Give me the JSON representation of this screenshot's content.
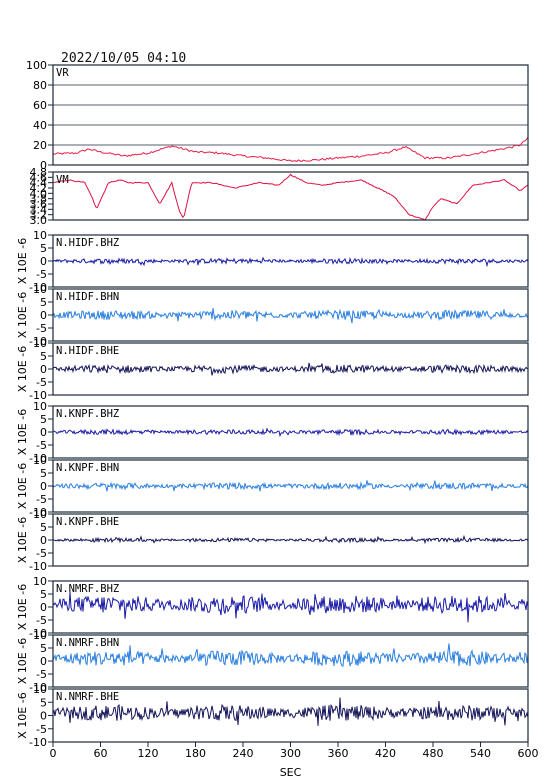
{
  "header": {
    "datetime": "2022/10/05 04:10"
  },
  "colors": {
    "vr_line": "#e8204a",
    "vm_line": "#e01040",
    "bhz": "#1a1aa8",
    "bhn": "#2a7fe0",
    "bhe": "#14145a",
    "frame": "#1a2a3a"
  },
  "chart_data": [
    {
      "type": "line",
      "panel_label": "VR",
      "x_range": [
        0,
        600
      ],
      "ylim": [
        0,
        100
      ],
      "y_ticks": [
        "100",
        "80",
        "60",
        "40",
        "20",
        "0"
      ],
      "grid": true,
      "x": [
        0,
        30,
        45,
        60,
        90,
        120,
        150,
        165,
        180,
        210,
        240,
        270,
        300,
        330,
        360,
        390,
        420,
        445,
        470,
        500,
        530,
        560,
        580,
        590,
        600
      ],
      "values": [
        11,
        12,
        16,
        13,
        9,
        12,
        19,
        16,
        13,
        12,
        9,
        7,
        4,
        5,
        7,
        9,
        12,
        18,
        7,
        7,
        11,
        15,
        18,
        20,
        27
      ]
    },
    {
      "type": "line",
      "panel_label": "VM",
      "x_range": [
        0,
        600
      ],
      "ylim": [
        3.0,
        4.8
      ],
      "y_ticks": [
        "4.8",
        "4.6",
        "4.4",
        "4.2",
        "4.0",
        "3.8",
        "3.6",
        "3.4",
        "3.2",
        "3.0"
      ],
      "grid": false,
      "x": [
        0,
        20,
        40,
        50,
        55,
        70,
        85,
        95,
        120,
        135,
        150,
        160,
        165,
        175,
        200,
        230,
        260,
        285,
        300,
        320,
        340,
        360,
        390,
        410,
        430,
        450,
        470,
        480,
        490,
        510,
        530,
        550,
        570,
        590,
        600
      ],
      "values": [
        4.4,
        4.5,
        4.4,
        3.8,
        3.4,
        4.4,
        4.5,
        4.4,
        4.4,
        3.6,
        4.4,
        3.3,
        3.05,
        4.4,
        4.4,
        4.2,
        4.4,
        4.3,
        4.7,
        4.4,
        4.3,
        4.4,
        4.5,
        4.2,
        3.9,
        3.2,
        3.0,
        3.5,
        3.8,
        3.6,
        4.3,
        4.4,
        4.5,
        4.1,
        4.3
      ]
    },
    {
      "type": "line",
      "panel_label": "N.HIDF.BHZ",
      "x_range": [
        0,
        600
      ],
      "ylim": [
        -10,
        10
      ],
      "y_ticks": [
        "10",
        "5",
        "0",
        "-5",
        "-10"
      ],
      "series": [
        {
          "name": "N.HIDF.BHZ",
          "amplitude": 0.8,
          "offset": 0
        }
      ]
    },
    {
      "type": "line",
      "panel_label": "N.HIDF.BHN",
      "x_range": [
        0,
        600
      ],
      "ylim": [
        -10,
        10
      ],
      "y_ticks": [
        "10",
        "5",
        "0",
        "-5",
        "-10"
      ],
      "series": [
        {
          "name": "N.HIDF.BHN",
          "amplitude": 1.5,
          "offset": 0
        }
      ]
    },
    {
      "type": "line",
      "panel_label": "N.HIDF.BHE",
      "x_range": [
        0,
        600
      ],
      "ylim": [
        -10,
        10
      ],
      "y_ticks": [
        "10",
        "5",
        "0",
        "-5",
        "-10"
      ],
      "series": [
        {
          "name": "N.HIDF.BHE",
          "amplitude": 1.3,
          "offset": 0
        }
      ]
    },
    {
      "type": "line",
      "panel_label": "N.KNPF.BHZ",
      "x_range": [
        0,
        600
      ],
      "ylim": [
        -10,
        10
      ],
      "y_ticks": [
        "10",
        "5",
        "0",
        "-5",
        "-10"
      ],
      "series": [
        {
          "name": "N.KNPF.BHZ",
          "amplitude": 0.8,
          "offset": 0
        }
      ]
    },
    {
      "type": "line",
      "panel_label": "N.KNPF.BHN",
      "x_range": [
        0,
        600
      ],
      "ylim": [
        -10,
        10
      ],
      "y_ticks": [
        "10",
        "5",
        "0",
        "-5",
        "-10"
      ],
      "series": [
        {
          "name": "N.KNPF.BHN",
          "amplitude": 1.0,
          "offset": 0
        }
      ]
    },
    {
      "type": "line",
      "panel_label": "N.KNPF.BHE",
      "x_range": [
        0,
        600
      ],
      "ylim": [
        -10,
        10
      ],
      "y_ticks": [
        "10",
        "5",
        "0",
        "-5",
        "-10"
      ],
      "series": [
        {
          "name": "N.KNPF.BHE",
          "amplitude": 0.6,
          "offset": 0
        }
      ]
    },
    {
      "type": "line",
      "panel_label": "N.NMRF.BHZ",
      "x_range": [
        0,
        600
      ],
      "ylim": [
        -10,
        10
      ],
      "y_ticks": [
        "10",
        "5",
        "0",
        "-5",
        "-10"
      ],
      "series": [
        {
          "name": "N.NMRF.BHZ",
          "amplitude": 3.0,
          "offset": 1
        }
      ]
    },
    {
      "type": "line",
      "panel_label": "N.NMRF.BHN",
      "x_range": [
        0,
        600
      ],
      "ylim": [
        -10,
        10
      ],
      "y_ticks": [
        "10",
        "5",
        "0",
        "-5",
        "-10"
      ],
      "series": [
        {
          "name": "N.NMRF.BHN",
          "amplitude": 2.5,
          "offset": 1
        }
      ]
    },
    {
      "type": "line",
      "panel_label": "N.NMRF.BHE",
      "x_range": [
        0,
        600
      ],
      "ylim": [
        -10,
        10
      ],
      "y_ticks": [
        "10",
        "5",
        "0",
        "-5",
        "-10"
      ],
      "series": [
        {
          "name": "N.NMRF.BHE",
          "amplitude": 2.5,
          "offset": 1
        }
      ]
    }
  ],
  "seismo_ylabel": "X 10E -6",
  "x_axis": {
    "ticks": [
      "0",
      "60",
      "120",
      "180",
      "240",
      "300",
      "360",
      "420",
      "480",
      "540",
      "600"
    ],
    "label": "SEC"
  }
}
